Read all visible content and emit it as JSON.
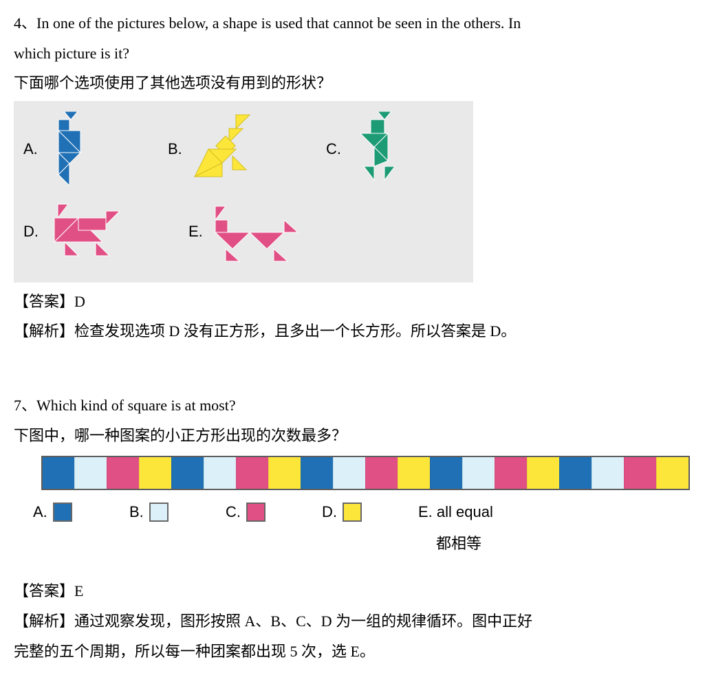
{
  "colors": {
    "blue": "#1f70b5",
    "lightblue": "#dbf0f8",
    "pink": "#e15085",
    "yellow": "#fde63a",
    "teal": "#1c9b74",
    "panel_bg": "#e9e9e9",
    "border": "#5d5d5d"
  },
  "q4": {
    "number": "4、",
    "text_en_line1": "In one of the pictures below, a shape is used that cannot be seen in the others. In",
    "text_en_line2": "which picture is it?",
    "text_cn": "下面哪个选项使用了其他选项没有用到的形状？",
    "options": {
      "A": {
        "label": "A.",
        "color": "#1f70b5"
      },
      "B": {
        "label": "B.",
        "color": "#fde63a"
      },
      "C": {
        "label": "C.",
        "color": "#1c9b74"
      },
      "D": {
        "label": "D.",
        "color": "#e15085"
      },
      "E": {
        "label": "E.",
        "color": "#e15085"
      }
    },
    "answer_label": "【答案】",
    "answer": "D",
    "explain_label": "【解析】",
    "explain": "检查发现选项 D 没有正方形，且多出一个长方形。所以答案是 D。"
  },
  "q7": {
    "number": "7、",
    "text_en": "Which kind of square is at most?",
    "text_cn": "下图中，哪一种图案的小正方形出现的次数最多？",
    "sequence_colors": [
      "#1f70b5",
      "#dbf0f8",
      "#e15085",
      "#fde63a",
      "#1f70b5",
      "#dbf0f8",
      "#e15085",
      "#fde63a",
      "#1f70b5",
      "#dbf0f8",
      "#e15085",
      "#fde63a",
      "#1f70b5",
      "#dbf0f8",
      "#e15085",
      "#fde63a",
      "#1f70b5",
      "#dbf0f8",
      "#e15085",
      "#fde63a"
    ],
    "options": {
      "A": {
        "label": "A.",
        "color": "#1f70b5"
      },
      "B": {
        "label": "B.",
        "color": "#dbf0f8"
      },
      "C": {
        "label": "C.",
        "color": "#e15085"
      },
      "D": {
        "label": "D.",
        "color": "#fde63a"
      },
      "E": {
        "label": "E.",
        "text": "all equal",
        "text_cn": "都相等"
      }
    },
    "answer_label": "【答案】",
    "answer": "E",
    "explain_label": "【解析】",
    "explain_line1": "通过观察发现，图形按照 A、B、C、D 为一组的规律循环。图中正好",
    "explain_line2": "完整的五个周期，所以每一种团案都出现 5 次，选 E。"
  }
}
